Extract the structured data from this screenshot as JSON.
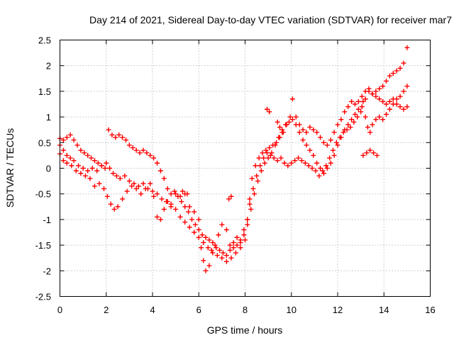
{
  "chart_data": {
    "type": "scatter",
    "title": "Day 214 of 2021, Sidereal Day-to-day VTEC variation (SDTVAR) for receiver mar7",
    "xlabel": "GPS time / hours",
    "ylabel": "SDTVAR / TECUs",
    "xlim": [
      0,
      16
    ],
    "ylim": [
      -2.5,
      2.5
    ],
    "x_ticks": [
      "0",
      "2",
      "4",
      "6",
      "8",
      "10",
      "12",
      "14",
      "16"
    ],
    "y_ticks": [
      "-2.5",
      "-2",
      "-1.5",
      "-1",
      "-0.5",
      "0",
      "0.5",
      "1",
      "1.5",
      "2",
      "2.5"
    ],
    "grid": true,
    "marker": "+",
    "series": [
      {
        "name": "SDTVAR",
        "color": "#ff0000",
        "points": [
          [
            0.0,
            0.28
          ],
          [
            0.15,
            0.15
          ],
          [
            0.3,
            0.1
          ],
          [
            0.5,
            0.05
          ],
          [
            0.7,
            -0.05
          ],
          [
            0.9,
            -0.1
          ],
          [
            1.1,
            -0.15
          ],
          [
            1.3,
            -0.2
          ],
          [
            1.5,
            -0.35
          ],
          [
            1.7,
            -0.3
          ],
          [
            1.9,
            -0.4
          ],
          [
            2.05,
            -0.55
          ],
          [
            2.2,
            -0.7
          ],
          [
            2.35,
            -0.8
          ],
          [
            2.5,
            -0.75
          ],
          [
            2.7,
            -0.6
          ],
          [
            2.9,
            -0.45
          ],
          [
            3.1,
            -0.35
          ],
          [
            3.3,
            -0.4
          ],
          [
            3.5,
            -0.5
          ],
          [
            3.7,
            -0.4
          ],
          [
            3.9,
            -0.3
          ],
          [
            4.05,
            -0.55
          ],
          [
            4.2,
            -0.95
          ],
          [
            4.35,
            -1.0
          ],
          [
            4.5,
            -0.8
          ],
          [
            4.65,
            -0.65
          ],
          [
            4.8,
            -0.7
          ],
          [
            5.0,
            -0.5
          ],
          [
            5.2,
            -0.55
          ],
          [
            5.4,
            -0.5
          ],
          [
            5.6,
            -0.75
          ],
          [
            5.8,
            -0.85
          ],
          [
            6.0,
            -1.0
          ],
          [
            6.1,
            -1.55
          ],
          [
            6.2,
            -1.8
          ],
          [
            6.3,
            -2.0
          ],
          [
            6.45,
            -1.9
          ],
          [
            6.55,
            -1.6
          ],
          [
            6.7,
            -1.5
          ],
          [
            6.85,
            -1.3
          ],
          [
            7.0,
            -1.1
          ],
          [
            7.2,
            -1.2
          ],
          [
            7.35,
            -1.5
          ],
          [
            7.5,
            -1.45
          ],
          [
            7.65,
            -1.35
          ],
          [
            7.8,
            -1.4
          ],
          [
            7.95,
            -1.2
          ],
          [
            8.1,
            -1.0
          ],
          [
            8.2,
            -0.6
          ],
          [
            8.3,
            -0.2
          ],
          [
            8.45,
            0.05
          ],
          [
            8.6,
            0.2
          ],
          [
            8.75,
            0.3
          ],
          [
            8.9,
            0.35
          ],
          [
            9.05,
            0.4
          ],
          [
            9.2,
            0.45
          ],
          [
            9.35,
            0.5
          ],
          [
            9.5,
            0.6
          ],
          [
            9.65,
            0.7
          ],
          [
            9.8,
            0.85
          ],
          [
            9.95,
            1.0
          ],
          [
            10.05,
            1.35
          ],
          [
            10.2,
            1.0
          ],
          [
            10.35,
            0.85
          ],
          [
            10.5,
            0.75
          ],
          [
            10.65,
            0.7
          ],
          [
            10.8,
            0.8
          ],
          [
            10.95,
            0.75
          ],
          [
            11.1,
            0.7
          ],
          [
            11.25,
            0.6
          ],
          [
            11.4,
            0.5
          ],
          [
            11.55,
            0.45
          ],
          [
            11.7,
            0.55
          ],
          [
            11.85,
            0.7
          ],
          [
            12.0,
            0.85
          ],
          [
            12.15,
            0.95
          ],
          [
            12.3,
            1.1
          ],
          [
            12.45,
            1.2
          ],
          [
            12.6,
            1.3
          ],
          [
            12.75,
            1.25
          ],
          [
            12.9,
            1.3
          ],
          [
            13.05,
            1.4
          ],
          [
            13.2,
            1.5
          ],
          [
            13.35,
            1.55
          ],
          [
            13.5,
            1.45
          ],
          [
            13.65,
            1.5
          ],
          [
            13.8,
            1.55
          ],
          [
            13.95,
            1.6
          ],
          [
            14.1,
            1.7
          ],
          [
            14.25,
            1.8
          ],
          [
            14.4,
            1.85
          ],
          [
            14.55,
            1.9
          ],
          [
            14.7,
            1.95
          ],
          [
            14.85,
            2.05
          ],
          [
            15.0,
            2.35
          ],
          [
            0.0,
            0.45
          ],
          [
            0.15,
            0.35
          ],
          [
            0.3,
            0.25
          ],
          [
            0.45,
            0.2
          ],
          [
            0.6,
            0.15
          ],
          [
            0.8,
            0.05
          ],
          [
            1.0,
            0.0
          ],
          [
            1.2,
            -0.05
          ],
          [
            1.4,
            0.0
          ],
          [
            1.6,
            -0.05
          ],
          [
            1.8,
            0.05
          ],
          [
            2.0,
            0.1
          ],
          [
            2.15,
            0.0
          ],
          [
            2.3,
            -0.1
          ],
          [
            2.45,
            -0.15
          ],
          [
            2.6,
            -0.2
          ],
          [
            2.8,
            -0.15
          ],
          [
            3.0,
            -0.25
          ],
          [
            3.2,
            -0.3
          ],
          [
            3.4,
            -0.35
          ],
          [
            3.6,
            -0.3
          ],
          [
            3.8,
            -0.4
          ],
          [
            4.0,
            -0.45
          ],
          [
            4.2,
            -0.5
          ],
          [
            4.4,
            -0.6
          ],
          [
            4.6,
            -0.65
          ],
          [
            4.8,
            -0.75
          ],
          [
            5.0,
            -0.8
          ],
          [
            5.2,
            -0.95
          ],
          [
            5.4,
            -1.05
          ],
          [
            5.6,
            -1.15
          ],
          [
            5.8,
            -1.25
          ],
          [
            6.0,
            -1.35
          ],
          [
            6.2,
            -1.45
          ],
          [
            6.4,
            -1.55
          ],
          [
            6.6,
            -1.65
          ],
          [
            6.8,
            -1.7
          ],
          [
            7.0,
            -1.75
          ],
          [
            7.2,
            -1.82
          ],
          [
            7.4,
            -1.75
          ],
          [
            7.6,
            -1.65
          ],
          [
            7.8,
            -1.55
          ],
          [
            8.0,
            -1.4
          ],
          [
            8.1,
            -1.0
          ],
          [
            8.2,
            -0.7
          ],
          [
            8.35,
            -0.4
          ],
          [
            8.5,
            -0.15
          ],
          [
            8.65,
            0.05
          ],
          [
            8.8,
            0.2
          ],
          [
            8.95,
            0.3
          ],
          [
            9.1,
            0.25
          ],
          [
            9.25,
            0.2
          ],
          [
            9.4,
            0.15
          ],
          [
            9.55,
            0.2
          ],
          [
            9.7,
            0.1
          ],
          [
            9.85,
            0.05
          ],
          [
            10.0,
            0.1
          ],
          [
            10.15,
            0.15
          ],
          [
            10.3,
            0.2
          ],
          [
            10.45,
            0.15
          ],
          [
            10.6,
            0.1
          ],
          [
            10.75,
            0.05
          ],
          [
            10.9,
            0.0
          ],
          [
            11.05,
            -0.05
          ],
          [
            11.2,
            -0.15
          ],
          [
            11.35,
            -0.05
          ],
          [
            11.5,
            0.05
          ],
          [
            11.65,
            0.2
          ],
          [
            11.8,
            0.35
          ],
          [
            11.95,
            0.5
          ],
          [
            12.1,
            0.6
          ],
          [
            12.25,
            0.7
          ],
          [
            12.4,
            0.75
          ],
          [
            12.55,
            0.8
          ],
          [
            12.7,
            0.9
          ],
          [
            12.85,
            1.0
          ],
          [
            13.0,
            1.1
          ],
          [
            13.1,
            1.3
          ],
          [
            13.2,
            1.0
          ],
          [
            13.3,
            0.8
          ],
          [
            13.4,
            0.7
          ],
          [
            13.5,
            0.85
          ],
          [
            13.65,
            0.95
          ],
          [
            13.8,
            1.0
          ],
          [
            13.95,
            0.95
          ],
          [
            14.1,
            1.05
          ],
          [
            14.25,
            1.15
          ],
          [
            14.4,
            1.25
          ],
          [
            14.55,
            1.35
          ],
          [
            14.7,
            1.4
          ],
          [
            14.85,
            1.5
          ],
          [
            15.0,
            1.6
          ],
          [
            0.0,
            0.58
          ],
          [
            0.15,
            0.55
          ],
          [
            0.3,
            0.6
          ],
          [
            0.45,
            0.65
          ],
          [
            0.6,
            0.55
          ],
          [
            0.75,
            0.45
          ],
          [
            0.9,
            0.35
          ],
          [
            1.05,
            0.3
          ],
          [
            1.2,
            0.25
          ],
          [
            1.35,
            0.2
          ],
          [
            1.5,
            0.15
          ],
          [
            1.65,
            0.1
          ],
          [
            1.8,
            0.05
          ],
          [
            1.95,
            0.0
          ],
          [
            2.1,
            0.75
          ],
          [
            2.25,
            0.65
          ],
          [
            2.4,
            0.6
          ],
          [
            2.55,
            0.65
          ],
          [
            2.7,
            0.6
          ],
          [
            2.85,
            0.55
          ],
          [
            3.0,
            0.45
          ],
          [
            3.15,
            0.4
          ],
          [
            3.3,
            0.35
          ],
          [
            3.45,
            0.3
          ],
          [
            3.6,
            0.35
          ],
          [
            3.75,
            0.3
          ],
          [
            3.9,
            0.25
          ],
          [
            4.05,
            0.2
          ],
          [
            4.2,
            0.1
          ],
          [
            4.35,
            -0.05
          ],
          [
            4.5,
            -0.2
          ],
          [
            4.65,
            -0.4
          ],
          [
            4.8,
            -0.5
          ],
          [
            4.95,
            -0.45
          ],
          [
            5.1,
            -0.55
          ],
          [
            5.25,
            -0.65
          ],
          [
            5.4,
            -0.75
          ],
          [
            5.55,
            -0.85
          ],
          [
            5.7,
            -1.0
          ],
          [
            5.85,
            -1.1
          ],
          [
            6.0,
            -1.2
          ],
          [
            6.15,
            -1.3
          ],
          [
            6.3,
            -1.35
          ],
          [
            6.45,
            -1.4
          ],
          [
            6.6,
            -1.45
          ],
          [
            6.75,
            -1.55
          ],
          [
            6.9,
            -1.6
          ],
          [
            7.05,
            -1.65
          ],
          [
            7.2,
            -1.7
          ],
          [
            7.35,
            -1.6
          ],
          [
            7.5,
            -1.55
          ],
          [
            7.65,
            -1.5
          ],
          [
            7.8,
            -1.45
          ],
          [
            7.95,
            -1.3
          ],
          [
            8.1,
            -1.1
          ],
          [
            8.25,
            -0.8
          ],
          [
            8.4,
            -0.5
          ],
          [
            8.55,
            -0.25
          ],
          [
            8.7,
            -0.05
          ],
          [
            8.85,
            0.1
          ],
          [
            9.0,
            0.2
          ],
          [
            9.15,
            0.3
          ],
          [
            9.3,
            0.45
          ],
          [
            9.45,
            0.6
          ],
          [
            9.6,
            0.75
          ],
          [
            9.75,
            0.85
          ],
          [
            9.9,
            0.9
          ],
          [
            10.05,
            0.95
          ],
          [
            10.2,
            0.85
          ],
          [
            10.35,
            0.7
          ],
          [
            10.5,
            0.55
          ],
          [
            10.65,
            0.45
          ],
          [
            10.8,
            0.35
          ],
          [
            10.95,
            0.25
          ],
          [
            11.1,
            0.1
          ],
          [
            11.25,
            0.0
          ],
          [
            11.4,
            -0.1
          ],
          [
            11.55,
            0.0
          ],
          [
            11.7,
            0.1
          ],
          [
            11.85,
            0.25
          ],
          [
            12.0,
            0.45
          ],
          [
            12.15,
            0.6
          ],
          [
            12.3,
            0.75
          ],
          [
            12.45,
            0.85
          ],
          [
            12.6,
            0.95
          ],
          [
            12.75,
            1.05
          ],
          [
            12.9,
            1.15
          ],
          [
            13.05,
            1.2
          ],
          [
            13.2,
            1.35
          ],
          [
            13.35,
            1.5
          ],
          [
            13.5,
            1.45
          ],
          [
            13.65,
            1.4
          ],
          [
            13.8,
            1.35
          ],
          [
            13.95,
            1.3
          ],
          [
            14.1,
            1.25
          ],
          [
            14.25,
            1.3
          ],
          [
            14.4,
            1.35
          ],
          [
            14.55,
            1.25
          ],
          [
            14.7,
            1.2
          ],
          [
            14.85,
            1.15
          ],
          [
            15.0,
            1.2
          ],
          [
            13.1,
            0.25
          ],
          [
            13.25,
            0.3
          ],
          [
            13.4,
            0.35
          ],
          [
            13.55,
            0.3
          ],
          [
            13.7,
            0.25
          ],
          [
            9.4,
            0.9
          ],
          [
            9.5,
            0.8
          ],
          [
            9.6,
            0.7
          ],
          [
            8.95,
            1.15
          ],
          [
            9.05,
            1.1
          ],
          [
            7.3,
            -0.6
          ],
          [
            7.4,
            -0.55
          ],
          [
            5.3,
            -0.45
          ],
          [
            5.5,
            -0.5
          ]
        ]
      }
    ]
  }
}
